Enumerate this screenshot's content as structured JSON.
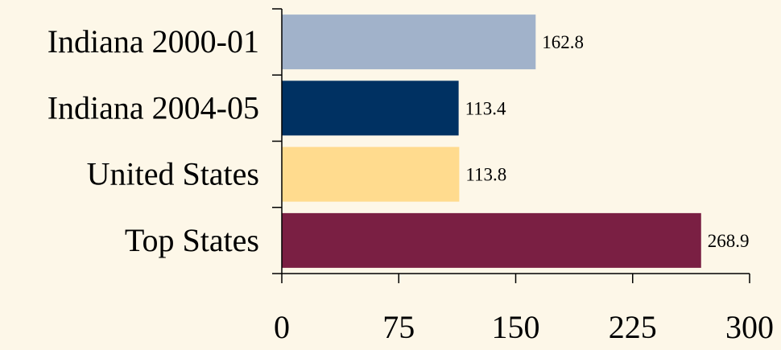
{
  "chart_data": {
    "type": "bar",
    "orientation": "horizontal",
    "categories": [
      "Indiana 2000-01",
      "Indiana 2004-05",
      "United States",
      "Top States"
    ],
    "values": [
      162.8,
      113.4,
      113.8,
      268.9
    ],
    "value_labels": [
      "162.8",
      "113.4",
      "113.8",
      "268.9"
    ],
    "bar_colors": [
      "#A1B2CA",
      "#003162",
      "#FFDB8E",
      "#7A1F43"
    ],
    "xlim": [
      0,
      300
    ],
    "x_ticks": [
      0,
      75,
      150,
      225,
      300
    ],
    "x_tick_labels": [
      "0",
      "75",
      "150",
      "225",
      "300"
    ],
    "grid": false,
    "legend": "none"
  },
  "colors": {
    "background": "#FDF7E8",
    "axis": "#000000",
    "text": "#000000"
  }
}
